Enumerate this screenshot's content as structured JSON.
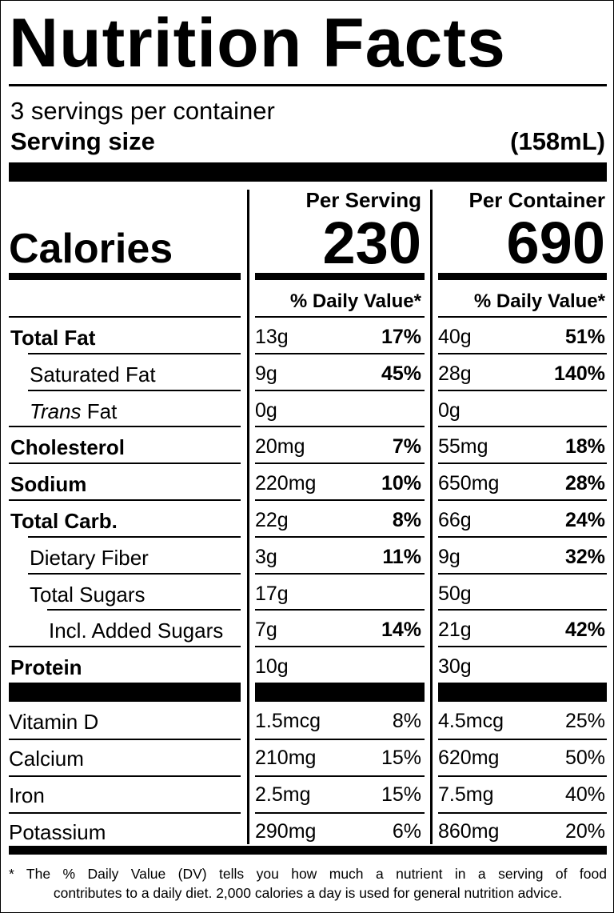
{
  "title": "Nutrition Facts",
  "servings_per_container": "3 servings per container",
  "serving_size_label": "Serving size",
  "serving_size_value": "(158mL)",
  "calories_label": "Calories",
  "per_serving_label": "Per Serving",
  "per_container_label": "Per Container",
  "calories_per_serving": "230",
  "calories_per_container": "690",
  "daily_value_header": "% Daily Value*",
  "nutrients": [
    {
      "name": "Total Fat",
      "style": "bold",
      "indent": 0,
      "ps_amount": "13g",
      "ps_dv": "17%",
      "pc_amount": "40g",
      "pc_dv": "51%"
    },
    {
      "name": "Saturated Fat",
      "style": "normal",
      "indent": 1,
      "ps_amount": "9g",
      "ps_dv": "45%",
      "pc_amount": "28g",
      "pc_dv": "140%"
    },
    {
      "name_italic": "Trans",
      "name": " Fat",
      "style": "normal",
      "indent": 1,
      "ps_amount": "0g",
      "ps_dv": "",
      "pc_amount": "0g",
      "pc_dv": ""
    },
    {
      "name": "Cholesterol",
      "style": "bold",
      "indent": 0,
      "ps_amount": "20mg",
      "ps_dv": "7%",
      "pc_amount": "55mg",
      "pc_dv": "18%"
    },
    {
      "name": "Sodium",
      "style": "bold",
      "indent": 0,
      "ps_amount": "220mg",
      "ps_dv": "10%",
      "pc_amount": "650mg",
      "pc_dv": "28%"
    },
    {
      "name": "Total Carb.",
      "style": "bold",
      "indent": 0,
      "ps_amount": "22g",
      "ps_dv": "8%",
      "pc_amount": "66g",
      "pc_dv": "24%"
    },
    {
      "name": "Dietary Fiber",
      "style": "normal",
      "indent": 1,
      "ps_amount": "3g",
      "ps_dv": "11%",
      "pc_amount": "9g",
      "pc_dv": "32%"
    },
    {
      "name": "Total Sugars",
      "style": "normal",
      "indent": 1,
      "ps_amount": "17g",
      "ps_dv": "",
      "pc_amount": "50g",
      "pc_dv": ""
    },
    {
      "name": "Incl. Added Sugars",
      "style": "normal",
      "indent": 2,
      "ps_amount": "7g",
      "ps_dv": "14%",
      "pc_amount": "21g",
      "pc_dv": "42%"
    },
    {
      "name": "Protein",
      "style": "bold",
      "indent": 0,
      "ps_amount": "10g",
      "ps_dv": "",
      "pc_amount": "30g",
      "pc_dv": ""
    }
  ],
  "vitamins": [
    {
      "name": "Vitamin D",
      "ps_amount": "1.5mcg",
      "ps_dv": "8%",
      "pc_amount": "4.5mcg",
      "pc_dv": "25%"
    },
    {
      "name": "Calcium",
      "ps_amount": "210mg",
      "ps_dv": "15%",
      "pc_amount": "620mg",
      "pc_dv": "50%"
    },
    {
      "name": "Iron",
      "ps_amount": "2.5mg",
      "ps_dv": "15%",
      "pc_amount": "7.5mg",
      "pc_dv": "40%"
    },
    {
      "name": "Potassium",
      "ps_amount": "290mg",
      "ps_dv": "6%",
      "pc_amount": "860mg",
      "pc_dv": "20%"
    }
  ],
  "footnote_line1": "* The % Daily Value (DV) tells you how much a nutrient in a serving of food",
  "footnote_line2": "contributes to a daily diet. 2,000 calories a day is used for general nutrition advice."
}
